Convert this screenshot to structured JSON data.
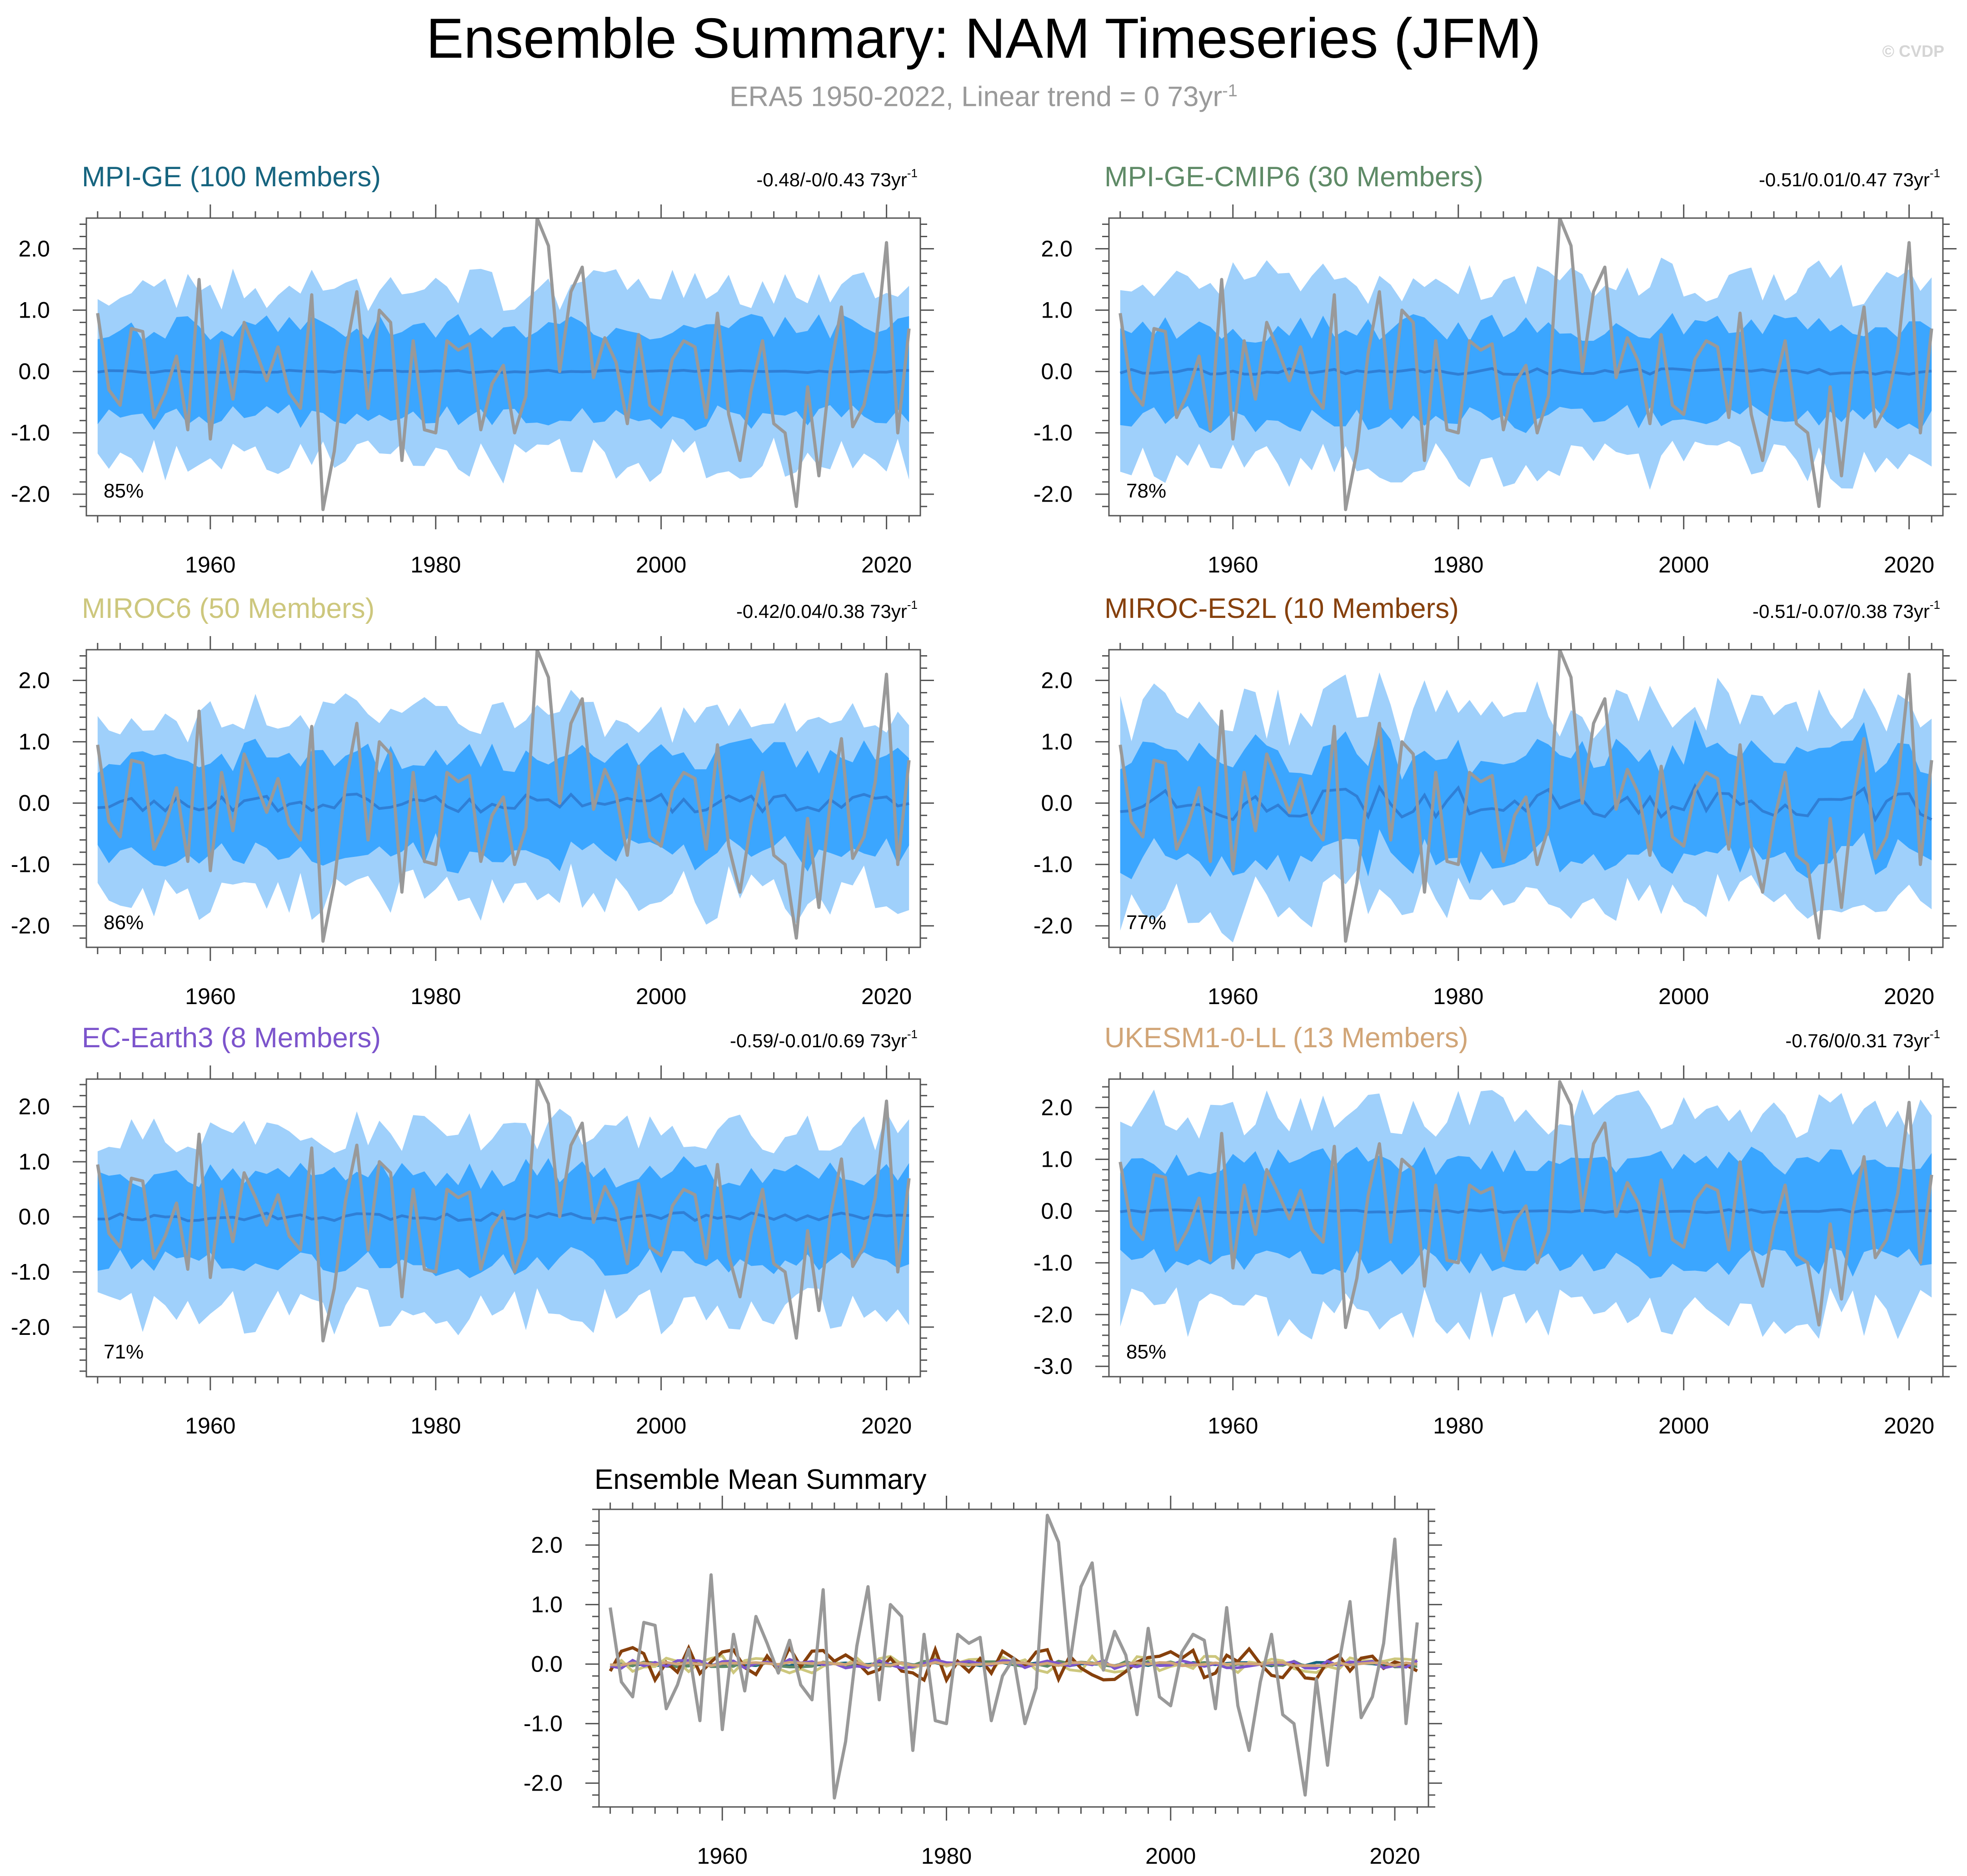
{
  "title": "Ensemble Summary: NAM Timeseries (JFM)",
  "subtitle_main": "ERA5 1950-2022, Linear trend = 0 73yr",
  "subtitle_exp": "-1",
  "watermark": "© CVDP",
  "colors": {
    "outer_band": "#9fd0fb",
    "inner_band": "#3ba6ff",
    "ens_mean": "#2f7fd6",
    "obs": "#999999",
    "axis": "#555555"
  },
  "chart_data": [
    {
      "type": "line",
      "id": "mpi-ge",
      "title": "MPI-GE (100 Members)",
      "title_color": "#16647f",
      "trend_main": "-0.48/-0/0.43 73yr",
      "trend_exp": "-1",
      "percent_label": "85%",
      "x_range": [
        1950,
        2022
      ],
      "xlim": [
        1949,
        2023
      ],
      "ylim": [
        -2.35,
        2.5
      ],
      "y_ticks": [
        -2.0,
        -1.0,
        0.0,
        1.0,
        2.0
      ],
      "y_tick_labels": [
        "-2.0",
        "-1.0",
        "0.0",
        "1.0",
        "2.0"
      ],
      "x_ticks": [
        1960,
        1980,
        2000,
        2020
      ],
      "x_tick_labels": [
        "1960",
        "1980",
        "2000",
        "2020"
      ],
      "outer_amp": 1.25,
      "inner_amp": 0.72,
      "mean_amp": 0.02,
      "seed": 11
    },
    {
      "type": "line",
      "id": "mpi-ge-cmip6",
      "title": "MPI-GE-CMIP6 (30 Members)",
      "title_color": "#5e8a66",
      "trend_main": "-0.51/0.01/0.47 73yr",
      "trend_exp": "-1",
      "percent_label": "78%",
      "x_range": [
        1950,
        2022
      ],
      "xlim": [
        1949,
        2023
      ],
      "ylim": [
        -2.35,
        2.5
      ],
      "y_ticks": [
        -2.0,
        -1.0,
        0.0,
        1.0,
        2.0
      ],
      "y_tick_labels": [
        "-2.0",
        "-1.0",
        "0.0",
        "1.0",
        "2.0"
      ],
      "x_ticks": [
        1960,
        1980,
        2000,
        2020
      ],
      "x_tick_labels": [
        "1960",
        "1980",
        "2000",
        "2020"
      ],
      "outer_amp": 1.35,
      "inner_amp": 0.72,
      "mean_amp": 0.05,
      "seed": 23
    },
    {
      "type": "line",
      "id": "miroc6",
      "title": "MIROC6 (50 Members)",
      "title_color": "#cdc77d",
      "trend_main": "-0.42/0.04/0.38 73yr",
      "trend_exp": "-1",
      "percent_label": "86%",
      "x_range": [
        1950,
        2022
      ],
      "xlim": [
        1949,
        2023
      ],
      "ylim": [
        -2.35,
        2.5
      ],
      "y_ticks": [
        -2.0,
        -1.0,
        0.0,
        1.0,
        2.0
      ],
      "y_tick_labels": [
        "-2.0",
        "-1.0",
        "0.0",
        "1.0",
        "2.0"
      ],
      "x_ticks": [
        1960,
        1980,
        2000,
        2020
      ],
      "x_tick_labels": [
        "1960",
        "1980",
        "2000",
        "2020"
      ],
      "outer_amp": 1.3,
      "inner_amp": 0.78,
      "mean_amp": 0.15,
      "seed": 37
    },
    {
      "type": "line",
      "id": "miroc-es2l",
      "title": "MIROC-ES2L (10 Members)",
      "title_color": "#86400c",
      "trend_main": "-0.51/-0.07/0.38 73yr",
      "trend_exp": "-1",
      "percent_label": "77%",
      "x_range": [
        1950,
        2022
      ],
      "xlim": [
        1949,
        2023
      ],
      "ylim": [
        -2.35,
        2.5
      ],
      "y_ticks": [
        -2.0,
        -1.0,
        0.0,
        1.0,
        2.0
      ],
      "y_tick_labels": [
        "-2.0",
        "-1.0",
        "0.0",
        "1.0",
        "2.0"
      ],
      "x_ticks": [
        1960,
        1980,
        2000,
        2020
      ],
      "x_tick_labels": [
        "1960",
        "1980",
        "2000",
        "2020"
      ],
      "outer_amp": 1.4,
      "inner_amp": 0.85,
      "mean_amp": 0.28,
      "seed": 41
    },
    {
      "type": "line",
      "id": "ec-earth3",
      "title": "EC-Earth3 (8 Members)",
      "title_color": "#7c54cc",
      "trend_main": "-0.59/-0.01/0.69 73yr",
      "trend_exp": "-1",
      "percent_label": "71%",
      "x_range": [
        1950,
        2022
      ],
      "xlim": [
        1949,
        2023
      ],
      "ylim": [
        -2.9,
        2.5
      ],
      "y_ticks": [
        -2.0,
        -1.0,
        0.0,
        1.0,
        2.0
      ],
      "y_tick_labels": [
        "-2.0",
        "-1.0",
        "0.0",
        "1.0",
        "2.0"
      ],
      "x_ticks": [
        1960,
        1980,
        2000,
        2020
      ],
      "x_tick_labels": [
        "1960",
        "1980",
        "2000",
        "2020"
      ],
      "outer_amp": 1.45,
      "inner_amp": 0.8,
      "mean_amp": 0.08,
      "seed": 53
    },
    {
      "type": "line",
      "id": "ukesm1-0-ll",
      "title": "UKESM1-0-LL (13 Members)",
      "title_color": "#d1a577",
      "trend_main": "-0.76/0/0.31 73yr",
      "trend_exp": "-1",
      "percent_label": "85%",
      "x_range": [
        1950,
        2022
      ],
      "xlim": [
        1949,
        2023
      ],
      "ylim": [
        -3.2,
        2.55
      ],
      "y_ticks": [
        -3.0,
        -2.0,
        -1.0,
        0.0,
        1.0,
        2.0
      ],
      "y_tick_labels": [
        "-3.0",
        "-2.0",
        "-1.0",
        "0.0",
        "1.0",
        "2.0"
      ],
      "x_ticks": [
        1960,
        1980,
        2000,
        2020
      ],
      "x_tick_labels": [
        "1960",
        "1980",
        "2000",
        "2020"
      ],
      "outer_amp": 1.75,
      "inner_amp": 0.95,
      "mean_amp": 0.03,
      "seed": 67
    },
    {
      "type": "line",
      "id": "ensemble-mean-summary",
      "title": "Ensemble Mean Summary",
      "title_color": "#000000",
      "x_range": [
        1950,
        2022
      ],
      "xlim": [
        1949,
        2023
      ],
      "ylim": [
        -2.4,
        2.6
      ],
      "y_ticks": [
        -2.0,
        -1.0,
        0.0,
        1.0,
        2.0
      ],
      "y_tick_labels": [
        "-2.0",
        "-1.0",
        "0.0",
        "1.0",
        "2.0"
      ],
      "x_ticks": [
        1960,
        1980,
        2000,
        2020
      ],
      "x_tick_labels": [
        "1960",
        "1980",
        "2000",
        "2020"
      ],
      "series_colors": [
        "#16647f",
        "#5e8a66",
        "#cdc77d",
        "#86400c",
        "#7c54cc",
        "#d1a577"
      ]
    }
  ],
  "obs_series": {
    "name": "ERA5",
    "years_start": 1950,
    "values": [
      0.95,
      -0.3,
      -0.55,
      0.7,
      0.65,
      -0.75,
      -0.35,
      0.25,
      -0.95,
      1.5,
      -1.1,
      0.5,
      -0.45,
      0.8,
      0.35,
      -0.15,
      0.4,
      -0.35,
      -0.6,
      1.25,
      -2.25,
      -1.3,
      0.3,
      1.3,
      -0.6,
      1.0,
      0.8,
      -1.45,
      0.5,
      -0.95,
      -1.0,
      0.5,
      0.35,
      0.45,
      -0.95,
      -0.2,
      0.1,
      -1.0,
      -0.4,
      2.5,
      2.05,
      0.0,
      1.3,
      1.7,
      -0.1,
      0.55,
      0.15,
      -0.85,
      0.6,
      -0.55,
      -0.7,
      0.2,
      0.5,
      0.4,
      -0.75,
      0.95,
      -0.7,
      -1.45,
      -0.3,
      0.5,
      -0.85,
      -1.0,
      -2.2,
      -0.25,
      -1.7,
      0.0,
      1.05,
      -0.9,
      -0.55,
      0.35,
      2.1,
      -1.0,
      0.7
    ]
  }
}
